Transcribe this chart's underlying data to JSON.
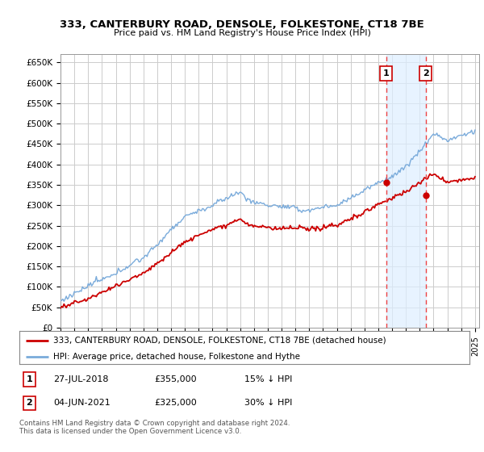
{
  "title": "333, CANTERBURY ROAD, DENSOLE, FOLKESTONE, CT18 7BE",
  "subtitle": "Price paid vs. HM Land Registry's House Price Index (HPI)",
  "yticks": [
    0,
    50000,
    100000,
    150000,
    200000,
    250000,
    300000,
    350000,
    400000,
    450000,
    500000,
    550000,
    600000,
    650000
  ],
  "ylim": [
    0,
    670000
  ],
  "xlim_start": 1995.0,
  "xlim_end": 2025.3,
  "hpi_color": "#7aabdb",
  "price_color": "#cc0000",
  "grid_color": "#cccccc",
  "bg_color": "#ffffff",
  "shade_color": "#ddeeff",
  "ann1_x": 2018.57,
  "ann1_y_red": 355000,
  "ann2_x": 2021.42,
  "ann2_y_red": 325000,
  "vline_color": "#ee4444",
  "legend_label_red": "333, CANTERBURY ROAD, DENSOLE, FOLKESTONE, CT18 7BE (detached house)",
  "legend_label_blue": "HPI: Average price, detached house, Folkestone and Hythe",
  "footnote": "Contains HM Land Registry data © Crown copyright and database right 2024.\nThis data is licensed under the Open Government Licence v3.0.",
  "xtick_years": [
    1995,
    1996,
    1997,
    1998,
    1999,
    2000,
    2001,
    2002,
    2003,
    2004,
    2005,
    2006,
    2007,
    2008,
    2009,
    2010,
    2011,
    2012,
    2013,
    2014,
    2015,
    2016,
    2017,
    2018,
    2019,
    2020,
    2021,
    2022,
    2023,
    2024,
    2025
  ],
  "row1_num": "1",
  "row1_date": "27-JUL-2018",
  "row1_price": "£355,000",
  "row1_pct": "15% ↓ HPI",
  "row2_num": "2",
  "row2_date": "04-JUN-2021",
  "row2_price": "£325,000",
  "row2_pct": "30% ↓ HPI"
}
